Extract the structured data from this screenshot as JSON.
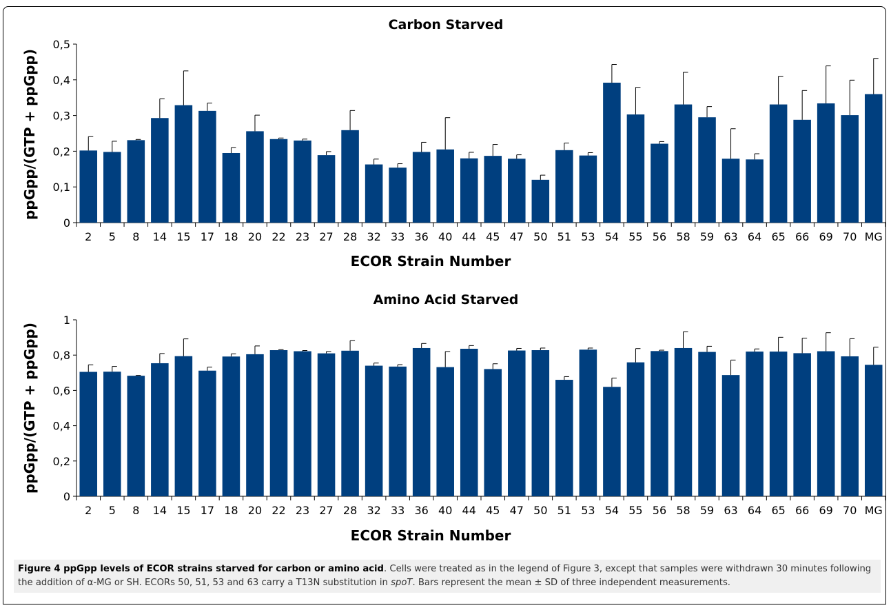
{
  "chart_data": [
    {
      "type": "bar",
      "title": "Carbon Starved",
      "xlabel": "ECOR Strain Number",
      "ylabel": "ppGpp/(GTP + ppGpp)",
      "ylim": [
        0,
        0.5
      ],
      "yticks": [
        "0",
        "0,1",
        "0,2",
        "0,3",
        "0,4",
        "0,5"
      ],
      "categories": [
        "2",
        "5",
        "8",
        "14",
        "15",
        "17",
        "18",
        "20",
        "22",
        "23",
        "27",
        "28",
        "32",
        "33",
        "36",
        "40",
        "44",
        "45",
        "47",
        "50",
        "51",
        "53",
        "54",
        "55",
        "56",
        "58",
        "59",
        "63",
        "64",
        "65",
        "66",
        "69",
        "70",
        "MG"
      ],
      "values": [
        0.202,
        0.198,
        0.231,
        0.293,
        0.329,
        0.313,
        0.195,
        0.256,
        0.234,
        0.23,
        0.189,
        0.259,
        0.163,
        0.154,
        0.198,
        0.205,
        0.18,
        0.187,
        0.179,
        0.12,
        0.203,
        0.188,
        0.392,
        0.303,
        0.221,
        0.331,
        0.295,
        0.179,
        0.177,
        0.331,
        0.288,
        0.334,
        0.301,
        0.36
      ],
      "errors": [
        0.039,
        0.03,
        0.002,
        0.054,
        0.096,
        0.022,
        0.015,
        0.045,
        0.003,
        0.004,
        0.01,
        0.055,
        0.015,
        0.011,
        0.027,
        0.089,
        0.017,
        0.032,
        0.011,
        0.013,
        0.02,
        0.008,
        0.051,
        0.076,
        0.006,
        0.09,
        0.03,
        0.084,
        0.016,
        0.079,
        0.082,
        0.105,
        0.098,
        0.1
      ],
      "grid": false,
      "legend": "none",
      "bar_color": "#003f7f"
    },
    {
      "type": "bar",
      "title": "Amino Acid Starved",
      "xlabel": "ECOR Strain Number",
      "ylabel": "ppGpp/(GTP + ppGpp)",
      "ylim": [
        0,
        1
      ],
      "yticks": [
        "0",
        "0,2",
        "0,4",
        "0,6",
        "0,8",
        "1"
      ],
      "categories": [
        "2",
        "5",
        "8",
        "14",
        "15",
        "17",
        "18",
        "20",
        "22",
        "23",
        "27",
        "28",
        "32",
        "33",
        "36",
        "40",
        "44",
        "45",
        "47",
        "50",
        "51",
        "53",
        "54",
        "55",
        "56",
        "58",
        "59",
        "63",
        "64",
        "65",
        "66",
        "69",
        "70",
        "MG"
      ],
      "values": [
        0.705,
        0.706,
        0.683,
        0.754,
        0.794,
        0.712,
        0.792,
        0.805,
        0.828,
        0.822,
        0.81,
        0.825,
        0.74,
        0.735,
        0.84,
        0.732,
        0.836,
        0.721,
        0.826,
        0.828,
        0.66,
        0.831,
        0.62,
        0.759,
        0.823,
        0.84,
        0.818,
        0.687,
        0.82,
        0.82,
        0.811,
        0.822,
        0.793,
        0.745
      ],
      "errors": [
        0.04,
        0.03,
        0.002,
        0.055,
        0.098,
        0.02,
        0.015,
        0.047,
        0.003,
        0.004,
        0.01,
        0.057,
        0.015,
        0.011,
        0.026,
        0.088,
        0.018,
        0.03,
        0.012,
        0.012,
        0.018,
        0.009,
        0.05,
        0.078,
        0.005,
        0.092,
        0.032,
        0.085,
        0.015,
        0.081,
        0.085,
        0.105,
        0.1,
        0.1
      ],
      "grid": false,
      "legend": "none",
      "bar_color": "#003f7f"
    }
  ],
  "caption": {
    "title": "Figure 4 ppGpp levels of ECOR strains starved for carbon or amino acid",
    "text_before_gene": ". Cells were treated as in the legend of Figure 3, except that samples were withdrawn 30 minutes following the addition of α-MG or SH. ECORs 50, 51, 53 and 63 carry a T13N substitution in ",
    "gene": "spoT",
    "text_after_gene": ". Bars represent the mean ± SD of three independent measurements."
  }
}
